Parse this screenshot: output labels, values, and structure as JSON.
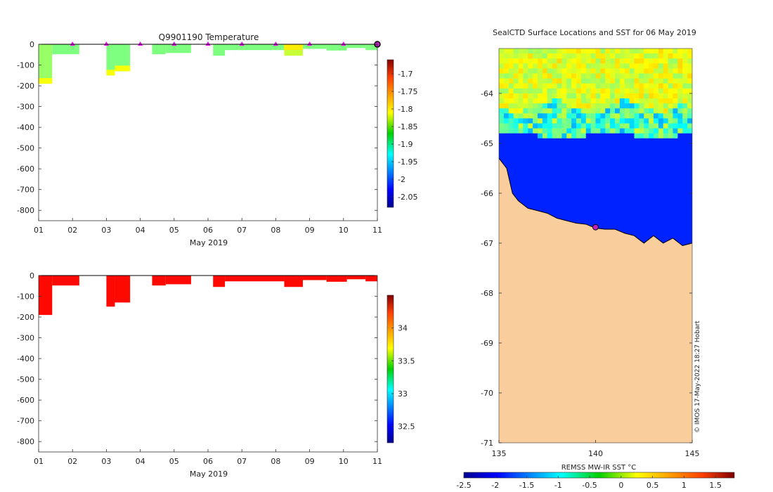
{
  "chart_data": [
    {
      "type": "heatmap",
      "panel": "temperature-profile",
      "title": "Q9901190  Temperature",
      "xlabel": "May 2019",
      "xticks": [
        "01",
        "02",
        "03",
        "04",
        "05",
        "06",
        "07",
        "08",
        "09",
        "10",
        "11"
      ],
      "xlim": [
        1,
        11
      ],
      "yticks": [
        0,
        -100,
        -200,
        -300,
        -400,
        -500,
        -600,
        -700,
        -800
      ],
      "ylim": [
        -850,
        0
      ],
      "colorbar": {
        "ticks": [
          -1.7,
          -1.75,
          -1.8,
          -1.85,
          -1.9,
          -1.95,
          -2,
          -2.05
        ],
        "tick_labels": [
          "-1.7",
          "-1.75",
          "-1.8",
          "-1.85",
          "-1.9",
          "-1.95",
          "-2",
          "-2.05"
        ],
        "range": [
          -2.08,
          -1.66
        ]
      },
      "profiles": [
        {
          "start": 1.0,
          "end": 1.4,
          "depth": 190,
          "value": -1.86,
          "bottom_value": -1.82
        },
        {
          "start": 1.4,
          "end": 2.2,
          "depth": 48,
          "value": -1.87
        },
        {
          "start": 3.0,
          "end": 3.25,
          "depth": 150,
          "value": -1.87,
          "bottom_value": -1.82
        },
        {
          "start": 3.25,
          "end": 3.7,
          "depth": 130,
          "value": -1.87,
          "bottom_value": -1.82
        },
        {
          "start": 4.35,
          "end": 4.75,
          "depth": 48,
          "value": -1.87
        },
        {
          "start": 4.75,
          "end": 5.5,
          "depth": 42,
          "value": -1.87
        },
        {
          "start": 6.15,
          "end": 6.5,
          "depth": 55,
          "value": -1.87
        },
        {
          "start": 6.5,
          "end": 8.25,
          "depth": 28,
          "value": -1.87
        },
        {
          "start": 8.25,
          "end": 8.8,
          "depth": 55,
          "value": -1.84,
          "top_value": -1.81
        },
        {
          "start": 8.8,
          "end": 9.5,
          "depth": 22,
          "value": -1.87
        },
        {
          "start": 9.5,
          "end": 10.1,
          "depth": 30,
          "value": -1.87
        },
        {
          "start": 10.1,
          "end": 10.65,
          "depth": 18,
          "value": -1.87
        },
        {
          "start": 10.65,
          "end": 11.0,
          "depth": 28,
          "value": -1.87
        }
      ],
      "markers": [
        2,
        3,
        4,
        5,
        6,
        7,
        8,
        9,
        10
      ],
      "last_marker": 11
    },
    {
      "type": "heatmap",
      "panel": "salinity-profile",
      "title": "",
      "xlabel": "May 2019",
      "xticks": [
        "01",
        "02",
        "03",
        "04",
        "05",
        "06",
        "07",
        "08",
        "09",
        "10",
        "11"
      ],
      "xlim": [
        1,
        11
      ],
      "yticks": [
        0,
        -100,
        -200,
        -300,
        -400,
        -500,
        -600,
        -700,
        -800
      ],
      "ylim": [
        -850,
        0
      ],
      "colorbar": {
        "ticks": [
          34,
          33.5,
          33,
          32.5
        ],
        "tick_labels": [
          "34",
          "33.5",
          "33",
          "32.5"
        ],
        "range": [
          32.25,
          34.5
        ]
      },
      "profiles": [
        {
          "start": 1.0,
          "end": 1.4,
          "depth": 190,
          "value": 34.2
        },
        {
          "start": 1.4,
          "end": 2.2,
          "depth": 48,
          "value": 34.2
        },
        {
          "start": 3.0,
          "end": 3.25,
          "depth": 150,
          "value": 34.2
        },
        {
          "start": 3.25,
          "end": 3.7,
          "depth": 130,
          "value": 34.2
        },
        {
          "start": 4.35,
          "end": 4.75,
          "depth": 48,
          "value": 34.2
        },
        {
          "start": 4.75,
          "end": 5.5,
          "depth": 42,
          "value": 34.2
        },
        {
          "start": 6.15,
          "end": 6.5,
          "depth": 55,
          "value": 34.2
        },
        {
          "start": 6.5,
          "end": 8.25,
          "depth": 28,
          "value": 34.2
        },
        {
          "start": 8.25,
          "end": 8.8,
          "depth": 55,
          "value": 34.2
        },
        {
          "start": 8.8,
          "end": 9.5,
          "depth": 22,
          "value": 34.2
        },
        {
          "start": 9.5,
          "end": 10.1,
          "depth": 30,
          "value": 34.2
        },
        {
          "start": 10.1,
          "end": 10.65,
          "depth": 18,
          "value": 34.2
        },
        {
          "start": 10.65,
          "end": 11.0,
          "depth": 28,
          "value": 34.2
        }
      ]
    },
    {
      "type": "heatmap",
      "panel": "sst-map",
      "title": "SealCTD Surface Locations and SST for 06 May 2019",
      "xlim": [
        135,
        145
      ],
      "ylim": [
        -71,
        -63.1
      ],
      "xticks": [
        135,
        140,
        145
      ],
      "yticks": [
        -64,
        -65,
        -66,
        -67,
        -68,
        -69,
        -70,
        -71
      ],
      "colorbar": {
        "label": "REMSS MW-IR SST °C",
        "ticks": [
          -2.5,
          -2,
          -1.5,
          -1,
          -0.5,
          0,
          0.5,
          1,
          1.5
        ],
        "tick_labels": [
          "-2.5",
          "-2",
          "-1.5",
          "-1",
          "-0.5",
          "0",
          "0.5",
          "1",
          "1.5"
        ],
        "range": [
          -2.5,
          1.8
        ]
      },
      "sst_zones": [
        {
          "name": "north-warm",
          "lat_top": -63.1,
          "lat_bottom": -64.2,
          "value": 0.05
        },
        {
          "name": "front",
          "lat_top": -64.2,
          "lat_bottom": -64.8,
          "value": -0.6
        },
        {
          "name": "south-cold",
          "lat_top": -64.8,
          "lat_bottom": -66.8,
          "value": -1.82
        }
      ],
      "coast": [
        [
          135,
          -65.3
        ],
        [
          135.4,
          -65.5
        ],
        [
          135.7,
          -66.0
        ],
        [
          136,
          -66.15
        ],
        [
          136.5,
          -66.3
        ],
        [
          137,
          -66.35
        ],
        [
          137.5,
          -66.4
        ],
        [
          138,
          -66.5
        ],
        [
          138.5,
          -66.55
        ],
        [
          139,
          -66.6
        ],
        [
          139.5,
          -66.62
        ],
        [
          140,
          -66.7
        ],
        [
          140.5,
          -66.72
        ],
        [
          141,
          -66.72
        ],
        [
          141.5,
          -66.8
        ],
        [
          142,
          -66.85
        ],
        [
          142.5,
          -67.0
        ],
        [
          143,
          -66.85
        ],
        [
          143.5,
          -67.0
        ],
        [
          144,
          -66.9
        ],
        [
          144.5,
          -67.05
        ],
        [
          145,
          -67.0
        ]
      ],
      "location": {
        "lon": 140.0,
        "lat": -66.68
      },
      "credit": "© IMOS 17-May-2022 18:27 Hobart"
    }
  ]
}
